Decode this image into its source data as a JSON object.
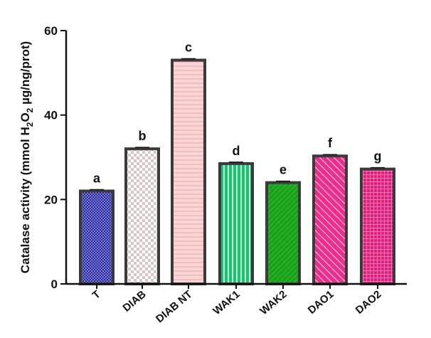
{
  "chart_data": {
    "type": "bar",
    "title": "",
    "xlabel": "",
    "ylabel": "Catalase activity (mmol H2O2 µg/ng/prot)",
    "ylabel_parts": {
      "prefix": "Catalase activity (mmol H",
      "sub1": "2",
      "mid": "O",
      "sub2": "2",
      "suffix": " µg/ng/prot)"
    },
    "ylim": [
      0,
      60
    ],
    "yticks": [
      0,
      20,
      40,
      60
    ],
    "grid": false,
    "legend": "none",
    "categories": [
      "T",
      "DIAB",
      "DIAB NT",
      "WAK1",
      "WAK2",
      "DAO1",
      "DAO2"
    ],
    "values": [
      22,
      32,
      53,
      28.5,
      24,
      30.3,
      27.2
    ],
    "significance_labels": [
      "a",
      "b",
      "c",
      "d",
      "e",
      "f",
      "g"
    ],
    "bar_fill_colors": [
      "#2a2a8e",
      "#d9c4c4",
      "#fbd5d5",
      "#1fbf74",
      "#22ad22",
      "#ec2e8c",
      "#e01f7c"
    ],
    "bar_pattern_colors": [
      "#7a7ae0",
      "#ffffff",
      "#e9a8a8",
      "#ffffff",
      "#0e7e0e",
      "#ffffff",
      "#ff8ac4"
    ],
    "bar_patterns": [
      "checker-fine",
      "checker-coarse",
      "horizontal-lines",
      "vertical-lines",
      "diagonal-lines",
      "diagonal-lines-wide",
      "grid"
    ],
    "bar_outline_color": "#3a3a3a"
  }
}
